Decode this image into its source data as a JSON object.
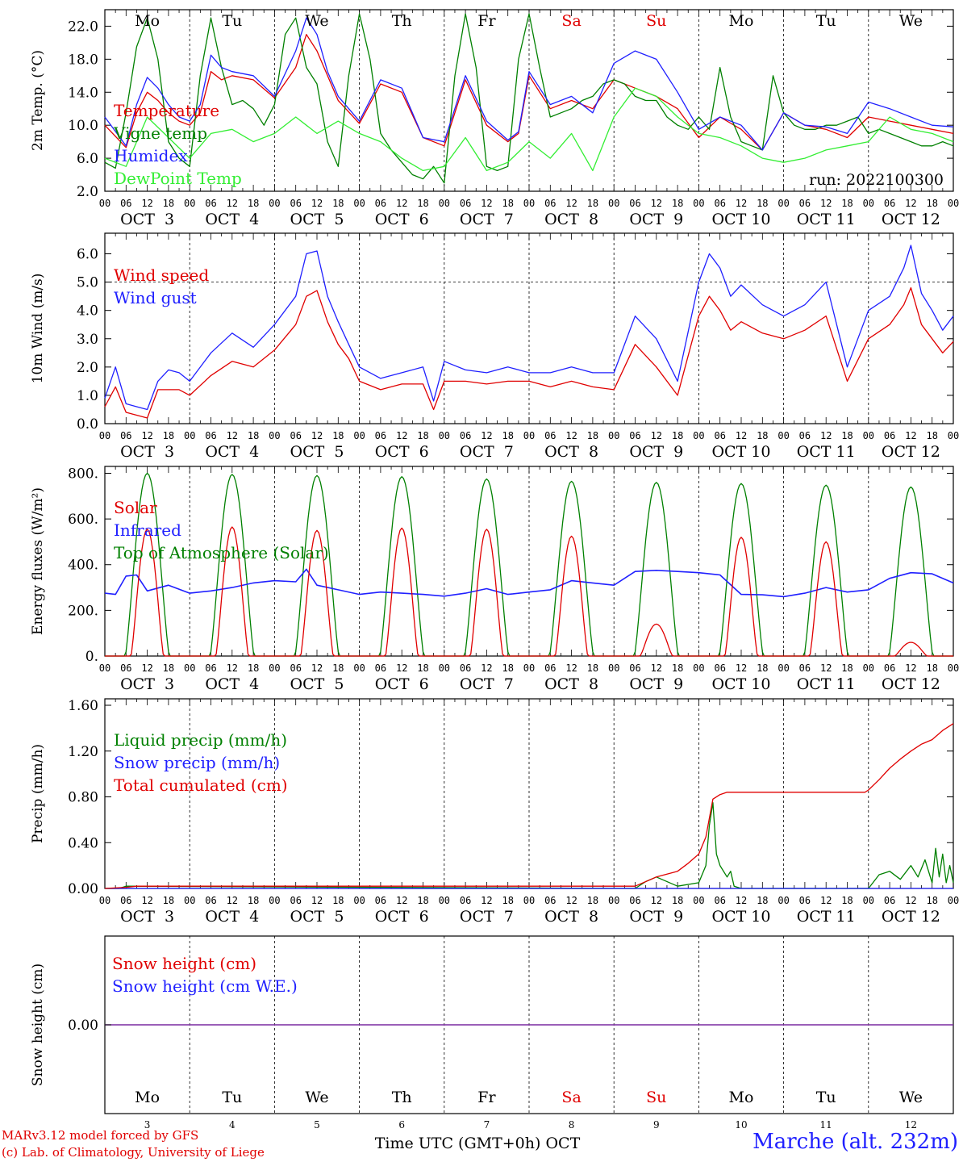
{
  "chart_data": [
    {
      "type": "line",
      "ylabel": "2m Temp. (°C)",
      "ylim": [
        2.0,
        24.0
      ],
      "yticks": [
        "2.0",
        "6.0",
        "10.0",
        "14.0",
        "18.0",
        "22.0"
      ],
      "run_label": "run: 2022100300",
      "x_unit": "hours since OCT 3 00 UTC",
      "series": [
        {
          "name": "Temperature",
          "color": "#e00000",
          "x": [
            0,
            6,
            9,
            12,
            15,
            18,
            21,
            24,
            27,
            30,
            33,
            36,
            42,
            48,
            54,
            57,
            60,
            63,
            66,
            72,
            78,
            84,
            90,
            96,
            102,
            108,
            114,
            117,
            120,
            126,
            132,
            138,
            144,
            150,
            156,
            162,
            168,
            174,
            180,
            186,
            192,
            198,
            204,
            210,
            216,
            222,
            228,
            234,
            240
          ],
          "y": [
            10.0,
            7.3,
            11.5,
            14.0,
            13.0,
            11.5,
            10.5,
            10.0,
            11.5,
            16.5,
            15.5,
            16.0,
            15.5,
            13.3,
            17.0,
            21.0,
            19.0,
            16.0,
            13.0,
            10.2,
            15.0,
            14.0,
            8.5,
            7.5,
            15.5,
            10.0,
            8.0,
            9.0,
            16.0,
            12.0,
            13.0,
            12.0,
            15.5,
            14.5,
            13.5,
            12.0,
            8.5,
            11.0,
            9.5,
            7.0,
            11.5,
            10.0,
            9.5,
            8.5,
            11.0,
            10.5,
            10.0,
            9.5,
            9.0
          ]
        },
        {
          "name": "Vigne temp",
          "color": "#008000",
          "x": [
            0,
            3,
            6,
            9,
            12,
            15,
            18,
            21,
            24,
            27,
            30,
            33,
            36,
            39,
            42,
            45,
            48,
            51,
            54,
            57,
            60,
            63,
            66,
            69,
            72,
            75,
            78,
            81,
            84,
            87,
            90,
            93,
            96,
            99,
            102,
            105,
            108,
            111,
            114,
            117,
            120,
            123,
            126,
            129,
            132,
            135,
            138,
            141,
            144,
            147,
            150,
            153,
            156,
            159,
            162,
            165,
            168,
            171,
            174,
            177,
            180,
            183,
            186,
            189,
            192,
            195,
            198,
            201,
            204,
            207,
            210,
            213,
            216,
            219,
            222,
            225,
            228,
            231,
            234,
            237,
            240
          ],
          "y": [
            5.5,
            4.8,
            11.5,
            19.5,
            23.0,
            18.0,
            8.0,
            6.0,
            5.0,
            16.0,
            23.0,
            17.0,
            12.5,
            13.0,
            12.0,
            10.0,
            12.5,
            21.0,
            23.0,
            17.0,
            15.0,
            8.0,
            5.0,
            16.0,
            23.5,
            18.0,
            9.0,
            7.0,
            5.5,
            4.0,
            3.5,
            5.0,
            3.0,
            16.0,
            23.5,
            17.0,
            5.0,
            4.5,
            5.0,
            18.0,
            23.5,
            17.0,
            11.0,
            11.5,
            12.0,
            13.0,
            13.5,
            15.0,
            15.5,
            15.0,
            13.5,
            13.0,
            13.0,
            11.0,
            10.0,
            9.5,
            11.0,
            9.5,
            17.0,
            11.0,
            8.0,
            7.5,
            7.0,
            16.0,
            11.5,
            10.0,
            9.5,
            9.5,
            10.0,
            10.0,
            10.5,
            11.0,
            9.0,
            9.5,
            9.0,
            8.5,
            8.0,
            7.5,
            7.5,
            8.0,
            7.5
          ]
        },
        {
          "name": "Humidex",
          "color": "#2020ff",
          "x": [
            0,
            6,
            9,
            12,
            15,
            18,
            21,
            24,
            27,
            30,
            33,
            36,
            42,
            48,
            54,
            57,
            60,
            63,
            66,
            72,
            78,
            84,
            90,
            96,
            102,
            108,
            114,
            117,
            120,
            126,
            132,
            138,
            144,
            150,
            156,
            162,
            168,
            174,
            180,
            186,
            192,
            198,
            204,
            210,
            216,
            222,
            228,
            234,
            240
          ],
          "y": [
            11.0,
            7.5,
            12.5,
            15.8,
            14.5,
            12.5,
            11.0,
            10.5,
            12.5,
            18.5,
            17.0,
            16.5,
            16.0,
            13.5,
            19.0,
            23.0,
            21.0,
            16.5,
            13.5,
            10.5,
            15.5,
            14.5,
            8.5,
            8.0,
            16.0,
            10.5,
            8.2,
            9.2,
            16.5,
            12.5,
            13.5,
            11.5,
            17.5,
            19.0,
            18.0,
            14.0,
            9.5,
            11.0,
            10.0,
            7.0,
            11.5,
            10.0,
            9.8,
            9.0,
            12.8,
            12.0,
            11.0,
            10.0,
            9.8
          ]
        },
        {
          "name": "DewPoint Temp",
          "color": "#33ee33",
          "x": [
            0,
            6,
            12,
            18,
            24,
            30,
            36,
            42,
            48,
            54,
            60,
            66,
            72,
            78,
            84,
            90,
            96,
            102,
            108,
            114,
            120,
            126,
            132,
            138,
            144,
            150,
            156,
            162,
            168,
            174,
            180,
            186,
            192,
            198,
            204,
            210,
            216,
            222,
            228,
            234,
            240
          ],
          "y": [
            6.0,
            5.0,
            11.0,
            8.5,
            6.0,
            9.0,
            9.5,
            8.0,
            9.0,
            11.0,
            9.0,
            10.5,
            9.0,
            8.0,
            6.0,
            4.5,
            5.0,
            8.5,
            4.5,
            5.5,
            8.0,
            6.0,
            9.0,
            4.5,
            11.0,
            14.5,
            13.5,
            11.0,
            9.0,
            8.5,
            7.5,
            6.0,
            5.5,
            6.0,
            7.0,
            7.5,
            8.0,
            11.0,
            9.5,
            9.0,
            8.0
          ]
        }
      ]
    },
    {
      "type": "line",
      "ylabel": "10m Wind (m/s)",
      "ylim": [
        0.0,
        6.5
      ],
      "yticks": [
        "0.0",
        "1.0",
        "2.0",
        "3.0",
        "4.0",
        "5.0",
        "6.0"
      ],
      "reference_line": 5.0,
      "x_unit": "hours since OCT 3 00 UTC",
      "series": [
        {
          "name": "Wind speed",
          "color": "#e00000",
          "x": [
            0,
            3,
            6,
            9,
            12,
            15,
            18,
            21,
            24,
            30,
            36,
            42,
            48,
            54,
            57,
            60,
            63,
            66,
            69,
            72,
            78,
            84,
            90,
            93,
            96,
            102,
            108,
            114,
            120,
            126,
            132,
            138,
            144,
            150,
            156,
            162,
            168,
            171,
            174,
            177,
            180,
            186,
            192,
            198,
            204,
            210,
            216,
            222,
            226,
            228,
            231,
            234,
            237,
            240
          ],
          "y": [
            0.6,
            1.3,
            0.4,
            0.3,
            0.2,
            1.2,
            1.2,
            1.2,
            1.0,
            1.7,
            2.2,
            2.0,
            2.6,
            3.5,
            4.5,
            4.7,
            3.6,
            2.8,
            2.3,
            1.5,
            1.2,
            1.4,
            1.4,
            0.5,
            1.5,
            1.5,
            1.4,
            1.5,
            1.5,
            1.3,
            1.5,
            1.3,
            1.2,
            2.8,
            2.0,
            1.0,
            3.8,
            4.5,
            4.0,
            3.3,
            3.6,
            3.2,
            3.0,
            3.3,
            3.8,
            1.5,
            3.0,
            3.5,
            4.2,
            4.8,
            3.5,
            3.0,
            2.5,
            2.9
          ]
        },
        {
          "name": "Wind gust",
          "color": "#2020ff",
          "x": [
            0,
            3,
            6,
            9,
            12,
            15,
            18,
            21,
            24,
            30,
            36,
            42,
            48,
            54,
            57,
            60,
            63,
            66,
            69,
            72,
            78,
            84,
            90,
            93,
            96,
            102,
            108,
            114,
            120,
            126,
            132,
            138,
            144,
            150,
            156,
            162,
            168,
            171,
            174,
            177,
            180,
            186,
            192,
            198,
            204,
            210,
            216,
            222,
            226,
            228,
            231,
            234,
            237,
            240
          ],
          "y": [
            0.9,
            2.0,
            0.7,
            0.6,
            0.5,
            1.5,
            1.9,
            1.8,
            1.5,
            2.5,
            3.2,
            2.7,
            3.5,
            4.5,
            6.0,
            6.1,
            4.5,
            3.6,
            2.8,
            2.0,
            1.6,
            1.8,
            2.0,
            0.8,
            2.2,
            1.9,
            1.8,
            2.0,
            1.8,
            1.8,
            2.0,
            1.8,
            1.8,
            3.8,
            3.0,
            1.5,
            5.0,
            6.0,
            5.5,
            4.5,
            4.9,
            4.2,
            3.8,
            4.2,
            5.0,
            2.0,
            4.0,
            4.5,
            5.5,
            6.3,
            4.6,
            4.0,
            3.3,
            3.8
          ]
        }
      ]
    },
    {
      "type": "line",
      "ylabel": "Energy fluxes (W/m²)",
      "ylim": [
        0,
        800
      ],
      "yticks": [
        "0.",
        "200.",
        "400.",
        "600.",
        "800."
      ],
      "x_unit": "hours since OCT 3 00 UTC",
      "daily_peaks": {
        "top_of_atmosphere": [
          800,
          795,
          790,
          785,
          775,
          765,
          760,
          755,
          748,
          740
        ],
        "solar": [
          555,
          565,
          550,
          560,
          555,
          525,
          140,
          520,
          500,
          60
        ]
      },
      "series": [
        {
          "name": "Solar",
          "color": "#e00000"
        },
        {
          "name": "Infrared",
          "color": "#2020ff",
          "x": [
            0,
            3,
            6,
            9,
            12,
            18,
            24,
            30,
            36,
            42,
            48,
            54,
            57,
            60,
            66,
            72,
            78,
            84,
            90,
            96,
            102,
            108,
            114,
            120,
            126,
            132,
            138,
            144,
            150,
            156,
            162,
            168,
            174,
            180,
            186,
            192,
            198,
            204,
            210,
            216,
            222,
            228,
            234,
            240
          ],
          "y": [
            275,
            270,
            350,
            355,
            285,
            310,
            275,
            285,
            300,
            320,
            330,
            325,
            380,
            310,
            290,
            270,
            280,
            275,
            270,
            262,
            275,
            295,
            270,
            280,
            290,
            330,
            320,
            310,
            370,
            375,
            370,
            365,
            355,
            270,
            268,
            260,
            275,
            300,
            280,
            290,
            340,
            365,
            360,
            320
          ]
        },
        {
          "name": "Top of Atmosphere (Solar)",
          "color": "#008000"
        }
      ]
    },
    {
      "type": "line",
      "ylabel": "Precip (mm/h)",
      "ylim": [
        0.0,
        1.6
      ],
      "yticks": [
        "0.00",
        "0.40",
        "0.80",
        "1.20",
        "1.60"
      ],
      "x_unit": "hours since OCT 3 00 UTC",
      "series": [
        {
          "name": "Liquid precip (mm/h)",
          "color": "#008000",
          "x": [
            0,
            4,
            6,
            150,
            153,
            156,
            162,
            168,
            170,
            171,
            172,
            173,
            174,
            176,
            177,
            178,
            180,
            216,
            219,
            222,
            225,
            228,
            230,
            232,
            234,
            235,
            236,
            237,
            238,
            239,
            240
          ],
          "y": [
            0,
            0,
            0.02,
            0,
            0.06,
            0.1,
            0.02,
            0.05,
            0.2,
            0.55,
            0.75,
            0.3,
            0.2,
            0.1,
            0.15,
            0.02,
            0,
            0,
            0.12,
            0.15,
            0.08,
            0.2,
            0.1,
            0.25,
            0.05,
            0.35,
            0.1,
            0.3,
            0.05,
            0.2,
            0.05
          ]
        },
        {
          "name": "Snow precip (mm/h)",
          "color": "#2020ff",
          "x": [
            0,
            240
          ],
          "y": [
            0,
            0
          ]
        },
        {
          "name": "Total cumulated (cm)",
          "color": "#e00000",
          "x": [
            0,
            6,
            9,
            150,
            156,
            162,
            165,
            168,
            170,
            172,
            174,
            176,
            180,
            204,
            215,
            216,
            219,
            222,
            225,
            228,
            231,
            234,
            237,
            240
          ],
          "y": [
            0,
            0.01,
            0.02,
            0.02,
            0.1,
            0.15,
            0.22,
            0.3,
            0.45,
            0.78,
            0.82,
            0.84,
            0.84,
            0.84,
            0.84,
            0.86,
            0.95,
            1.05,
            1.13,
            1.2,
            1.26,
            1.3,
            1.38,
            1.44
          ]
        }
      ]
    },
    {
      "type": "line",
      "ylabel": "Snow height (cm)",
      "yticks": [
        "0.00"
      ],
      "series": [
        {
          "name": "Snow height (cm)",
          "color": "#e00000",
          "x": [
            0,
            240
          ],
          "y": [
            0,
            0
          ]
        },
        {
          "name": "Snow height (cm W.E.)",
          "color": "#2020ff",
          "x": [
            0,
            240
          ],
          "y": [
            0,
            0
          ]
        }
      ]
    }
  ],
  "x_axis": {
    "hour_ticks": [
      "00",
      "06",
      "12",
      "18"
    ],
    "end_tick": "00",
    "date_labels": [
      "OCT  3",
      "OCT  4",
      "OCT  5",
      "OCT  6",
      "OCT  7",
      "OCT  8",
      "OCT  9",
      "OCT 10",
      "OCT 11",
      "OCT 12"
    ],
    "weekdays": [
      {
        "label": "Mo",
        "color": "#000000"
      },
      {
        "label": "Tu",
        "color": "#000000"
      },
      {
        "label": "We",
        "color": "#000000"
      },
      {
        "label": "Th",
        "color": "#000000"
      },
      {
        "label": "Fr",
        "color": "#000000"
      },
      {
        "label": "Sa",
        "color": "#e00000"
      },
      {
        "label": "Su",
        "color": "#e00000"
      },
      {
        "label": "Mo",
        "color": "#000000"
      },
      {
        "label": "Tu",
        "color": "#000000"
      },
      {
        "label": "We",
        "color": "#000000"
      }
    ],
    "day_numbers": [
      "3",
      "4",
      "5",
      "6",
      "7",
      "8",
      "9",
      "10",
      "11",
      "12"
    ],
    "bottom_title": "Time UTC (GMT+0h) OCT"
  },
  "footer": {
    "model_line": "MARv3.12 model forced by GFS",
    "copyright_line": "(c) Lab. of Climatology, University of Liege",
    "station": "Marche (alt. 232m)"
  }
}
